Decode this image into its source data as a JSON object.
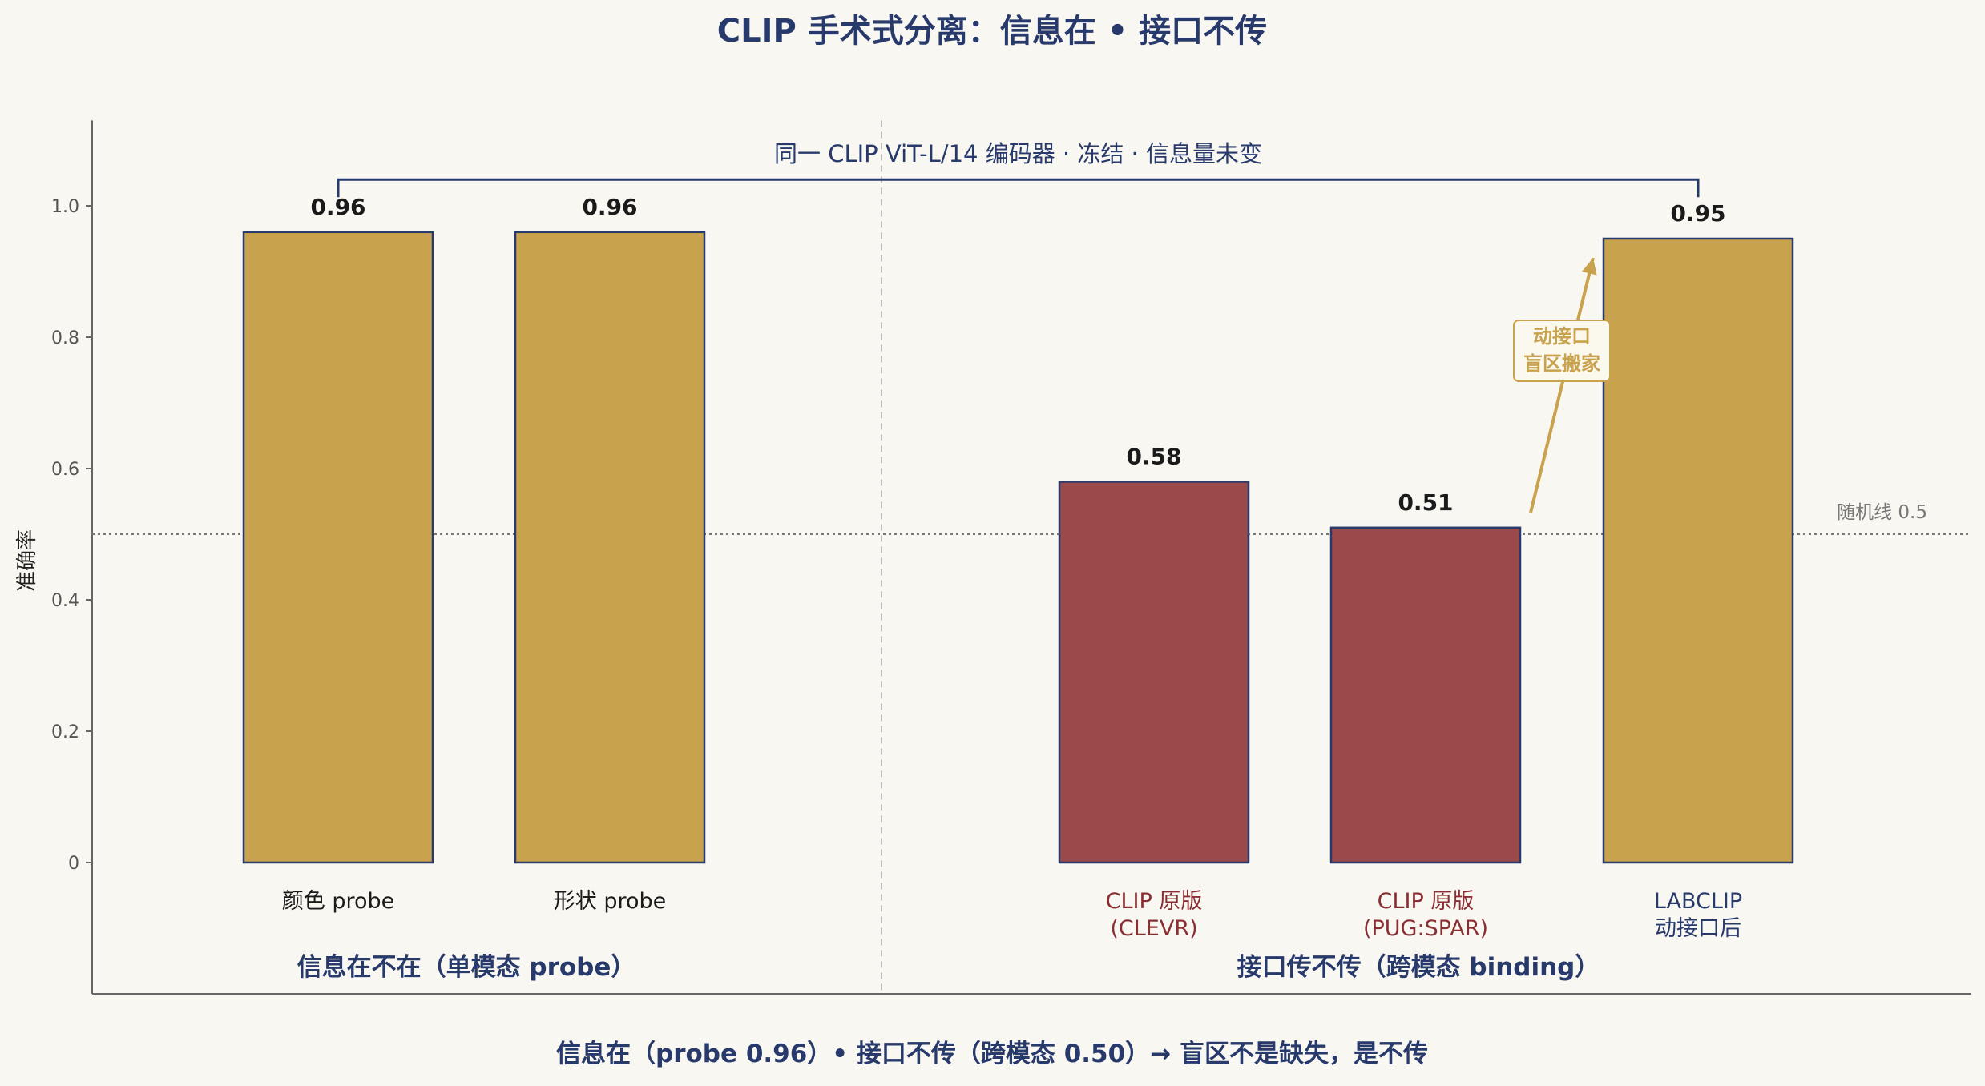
{
  "chart_data": {
    "type": "bar",
    "title": "CLIP 手术式分离：信息在 • 接口不传",
    "ylabel": "准确率",
    "ylim": [
      -0.2,
      1.13
    ],
    "yticks": [
      {
        "value": 0,
        "label": "0"
      },
      {
        "value": 0.2,
        "label": "0.2"
      },
      {
        "value": 0.4,
        "label": "0.4"
      },
      {
        "value": 0.6,
        "label": "0.6"
      },
      {
        "value": 0.8,
        "label": "0.8"
      },
      {
        "value": 1.0,
        "label": "1.0"
      }
    ],
    "bars": [
      {
        "lines": [
          "颜色 probe"
        ],
        "value": 0.96,
        "value_label": "0.96",
        "fill": "#c8a24c",
        "label_color": "#1a1a1a"
      },
      {
        "lines": [
          "形状 probe"
        ],
        "value": 0.96,
        "value_label": "0.96",
        "fill": "#c8a24c",
        "label_color": "#1a1a1a"
      },
      {
        "lines": [
          "CLIP 原版",
          "(CLEVR)"
        ],
        "value": 0.58,
        "value_label": "0.58",
        "fill": "#9b4a4c",
        "label_color": "#8b2e32"
      },
      {
        "lines": [
          "CLIP 原版",
          "(PUG:SPAR)"
        ],
        "value": 0.51,
        "value_label": "0.51",
        "fill": "#9b4a4c",
        "label_color": "#8b2e32"
      },
      {
        "lines": [
          "LABCLIP",
          "动接口后"
        ],
        "value": 0.95,
        "value_label": "0.95",
        "fill": "#c8a24c",
        "label_color": "#283a6b"
      }
    ],
    "groups": [
      {
        "label": "信息在不在（单模态 probe）"
      },
      {
        "label": "接口传不传（跨模态 binding）"
      }
    ],
    "reference_line": {
      "value": 0.5,
      "label": "随机线 0.5"
    },
    "bracket": {
      "label": "同一 CLIP ViT-L/14 编码器 · 冻结 · 信息量未变",
      "value": 1.04
    },
    "annotation": {
      "lines": [
        "动接口",
        "盲区搬家"
      ],
      "color": "#c8a24c"
    },
    "footer": "信息在（probe 0.96）• 接口不传（跨模态 0.50）→ 盲区不是缺失，是不传",
    "colors": {
      "gold": "#c8a24c",
      "red": "#9b4a4c",
      "navy": "#283a6b",
      "background": "#f8f7f2"
    }
  }
}
